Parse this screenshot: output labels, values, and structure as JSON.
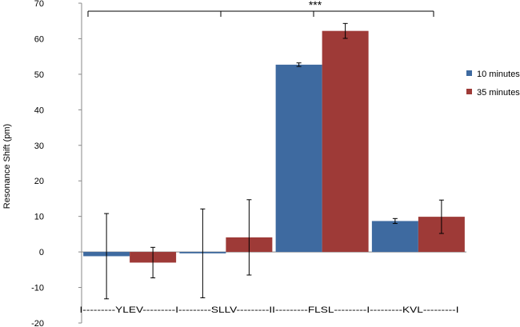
{
  "chart_data": {
    "type": "bar",
    "ylabel": "Resonance Shift (pm)",
    "ylim": [
      -20,
      70
    ],
    "yticks": [
      -20,
      -10,
      0,
      10,
      20,
      30,
      40,
      50,
      60,
      70
    ],
    "yticks_text": [
      "-20",
      "-10",
      "0",
      "10",
      "20",
      "30",
      "40",
      "50",
      "60",
      "70"
    ],
    "categories": [
      "YLEV",
      "SLLV",
      "FLSL",
      "KVL"
    ],
    "category_axis_text": "I---------YLEV---------I---------SLLV---------II---------FLSL---------I---------KVL---------I",
    "series": [
      {
        "name": "10 minutes",
        "color": "#3E6AA0",
        "values": [
          -1.2,
          -0.4,
          52.7,
          8.7
        ],
        "errors": [
          12.0,
          12.5,
          0.5,
          0.7
        ]
      },
      {
        "name": "35 minutes",
        "color": "#9E3A37",
        "values": [
          -3.0,
          4.1,
          62.2,
          9.9
        ],
        "errors": [
          4.3,
          10.6,
          2.1,
          4.7
        ]
      }
    ],
    "legend_position": "right",
    "significance": {
      "label": "***",
      "spans": [
        "YLEV",
        "SLLV",
        "FLSL",
        "KVL"
      ]
    },
    "grid": false
  }
}
